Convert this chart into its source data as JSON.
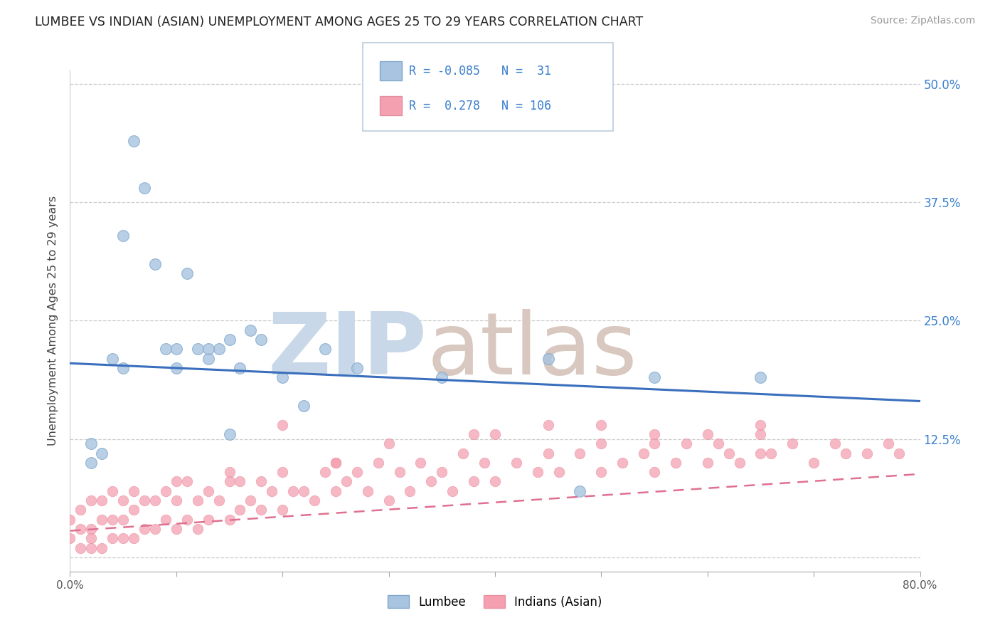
{
  "title": "LUMBEE VS INDIAN (ASIAN) UNEMPLOYMENT AMONG AGES 25 TO 29 YEARS CORRELATION CHART",
  "source": "Source: ZipAtlas.com",
  "ylabel": "Unemployment Among Ages 25 to 29 years",
  "xlim": [
    0.0,
    0.8
  ],
  "ylim": [
    -0.015,
    0.515
  ],
  "xticks": [
    0.0,
    0.1,
    0.2,
    0.3,
    0.4,
    0.5,
    0.6,
    0.7,
    0.8
  ],
  "ytick_positions": [
    0.0,
    0.125,
    0.25,
    0.375,
    0.5
  ],
  "ytick_labels_right": [
    "",
    "12.5%",
    "25.0%",
    "37.5%",
    "50.0%"
  ],
  "blue_R": -0.085,
  "blue_N": 31,
  "pink_R": 0.278,
  "pink_N": 106,
  "blue_color": "#a8c4e0",
  "pink_color": "#f4a0b0",
  "blue_line_color": "#3a6fbd",
  "pink_line_color": "#e07090",
  "watermark_zip": "ZIP",
  "watermark_atlas": "atlas",
  "watermark_color": "#dce8f0",
  "legend_blue_label": "Lumbee",
  "legend_pink_label": "Indians (Asian)",
  "blue_trend_x": [
    0.0,
    0.8
  ],
  "blue_trend_y": [
    0.205,
    0.165
  ],
  "pink_trend_x": [
    0.0,
    0.8
  ],
  "pink_trend_y": [
    0.028,
    0.088
  ],
  "blue_scatter_x": [
    0.02,
    0.04,
    0.05,
    0.06,
    0.07,
    0.08,
    0.09,
    0.1,
    0.11,
    0.12,
    0.13,
    0.14,
    0.15,
    0.16,
    0.17,
    0.18,
    0.2,
    0.22,
    0.24,
    0.27,
    0.02,
    0.03,
    0.05,
    0.1,
    0.13,
    0.15,
    0.35,
    0.45,
    0.55,
    0.65,
    0.48
  ],
  "blue_scatter_y": [
    0.12,
    0.21,
    0.2,
    0.44,
    0.39,
    0.31,
    0.22,
    0.22,
    0.3,
    0.22,
    0.21,
    0.22,
    0.23,
    0.2,
    0.24,
    0.23,
    0.19,
    0.16,
    0.22,
    0.2,
    0.1,
    0.11,
    0.34,
    0.2,
    0.22,
    0.13,
    0.19,
    0.21,
    0.19,
    0.19,
    0.07
  ],
  "pink_scatter_x": [
    0.0,
    0.0,
    0.01,
    0.01,
    0.01,
    0.02,
    0.02,
    0.02,
    0.02,
    0.03,
    0.03,
    0.03,
    0.04,
    0.04,
    0.04,
    0.05,
    0.05,
    0.05,
    0.06,
    0.06,
    0.06,
    0.07,
    0.07,
    0.08,
    0.08,
    0.09,
    0.09,
    0.1,
    0.1,
    0.11,
    0.11,
    0.12,
    0.12,
    0.13,
    0.13,
    0.14,
    0.15,
    0.15,
    0.16,
    0.16,
    0.17,
    0.18,
    0.18,
    0.19,
    0.2,
    0.2,
    0.21,
    0.22,
    0.23,
    0.24,
    0.25,
    0.25,
    0.26,
    0.27,
    0.28,
    0.29,
    0.3,
    0.31,
    0.32,
    0.33,
    0.34,
    0.35,
    0.36,
    0.37,
    0.38,
    0.39,
    0.4,
    0.42,
    0.44,
    0.45,
    0.46,
    0.48,
    0.5,
    0.5,
    0.52,
    0.54,
    0.55,
    0.55,
    0.57,
    0.58,
    0.6,
    0.61,
    0.62,
    0.63,
    0.65,
    0.65,
    0.66,
    0.68,
    0.7,
    0.72,
    0.73,
    0.75,
    0.77,
    0.78,
    0.2,
    0.3,
    0.4,
    0.5,
    0.6,
    0.38,
    0.45,
    0.55,
    0.65,
    0.1,
    0.15,
    0.25
  ],
  "pink_scatter_y": [
    0.02,
    0.04,
    0.01,
    0.03,
    0.05,
    0.01,
    0.03,
    0.06,
    0.02,
    0.01,
    0.04,
    0.06,
    0.02,
    0.04,
    0.07,
    0.02,
    0.04,
    0.06,
    0.02,
    0.05,
    0.07,
    0.03,
    0.06,
    0.03,
    0.06,
    0.04,
    0.07,
    0.03,
    0.06,
    0.04,
    0.08,
    0.03,
    0.06,
    0.04,
    0.07,
    0.06,
    0.04,
    0.08,
    0.05,
    0.08,
    0.06,
    0.05,
    0.08,
    0.07,
    0.05,
    0.09,
    0.07,
    0.07,
    0.06,
    0.09,
    0.07,
    0.1,
    0.08,
    0.09,
    0.07,
    0.1,
    0.06,
    0.09,
    0.07,
    0.1,
    0.08,
    0.09,
    0.07,
    0.11,
    0.08,
    0.1,
    0.08,
    0.1,
    0.09,
    0.11,
    0.09,
    0.11,
    0.09,
    0.12,
    0.1,
    0.11,
    0.09,
    0.12,
    0.1,
    0.12,
    0.1,
    0.12,
    0.11,
    0.1,
    0.11,
    0.13,
    0.11,
    0.12,
    0.1,
    0.12,
    0.11,
    0.11,
    0.12,
    0.11,
    0.14,
    0.12,
    0.13,
    0.14,
    0.13,
    0.13,
    0.14,
    0.13,
    0.14,
    0.08,
    0.09,
    0.1
  ]
}
